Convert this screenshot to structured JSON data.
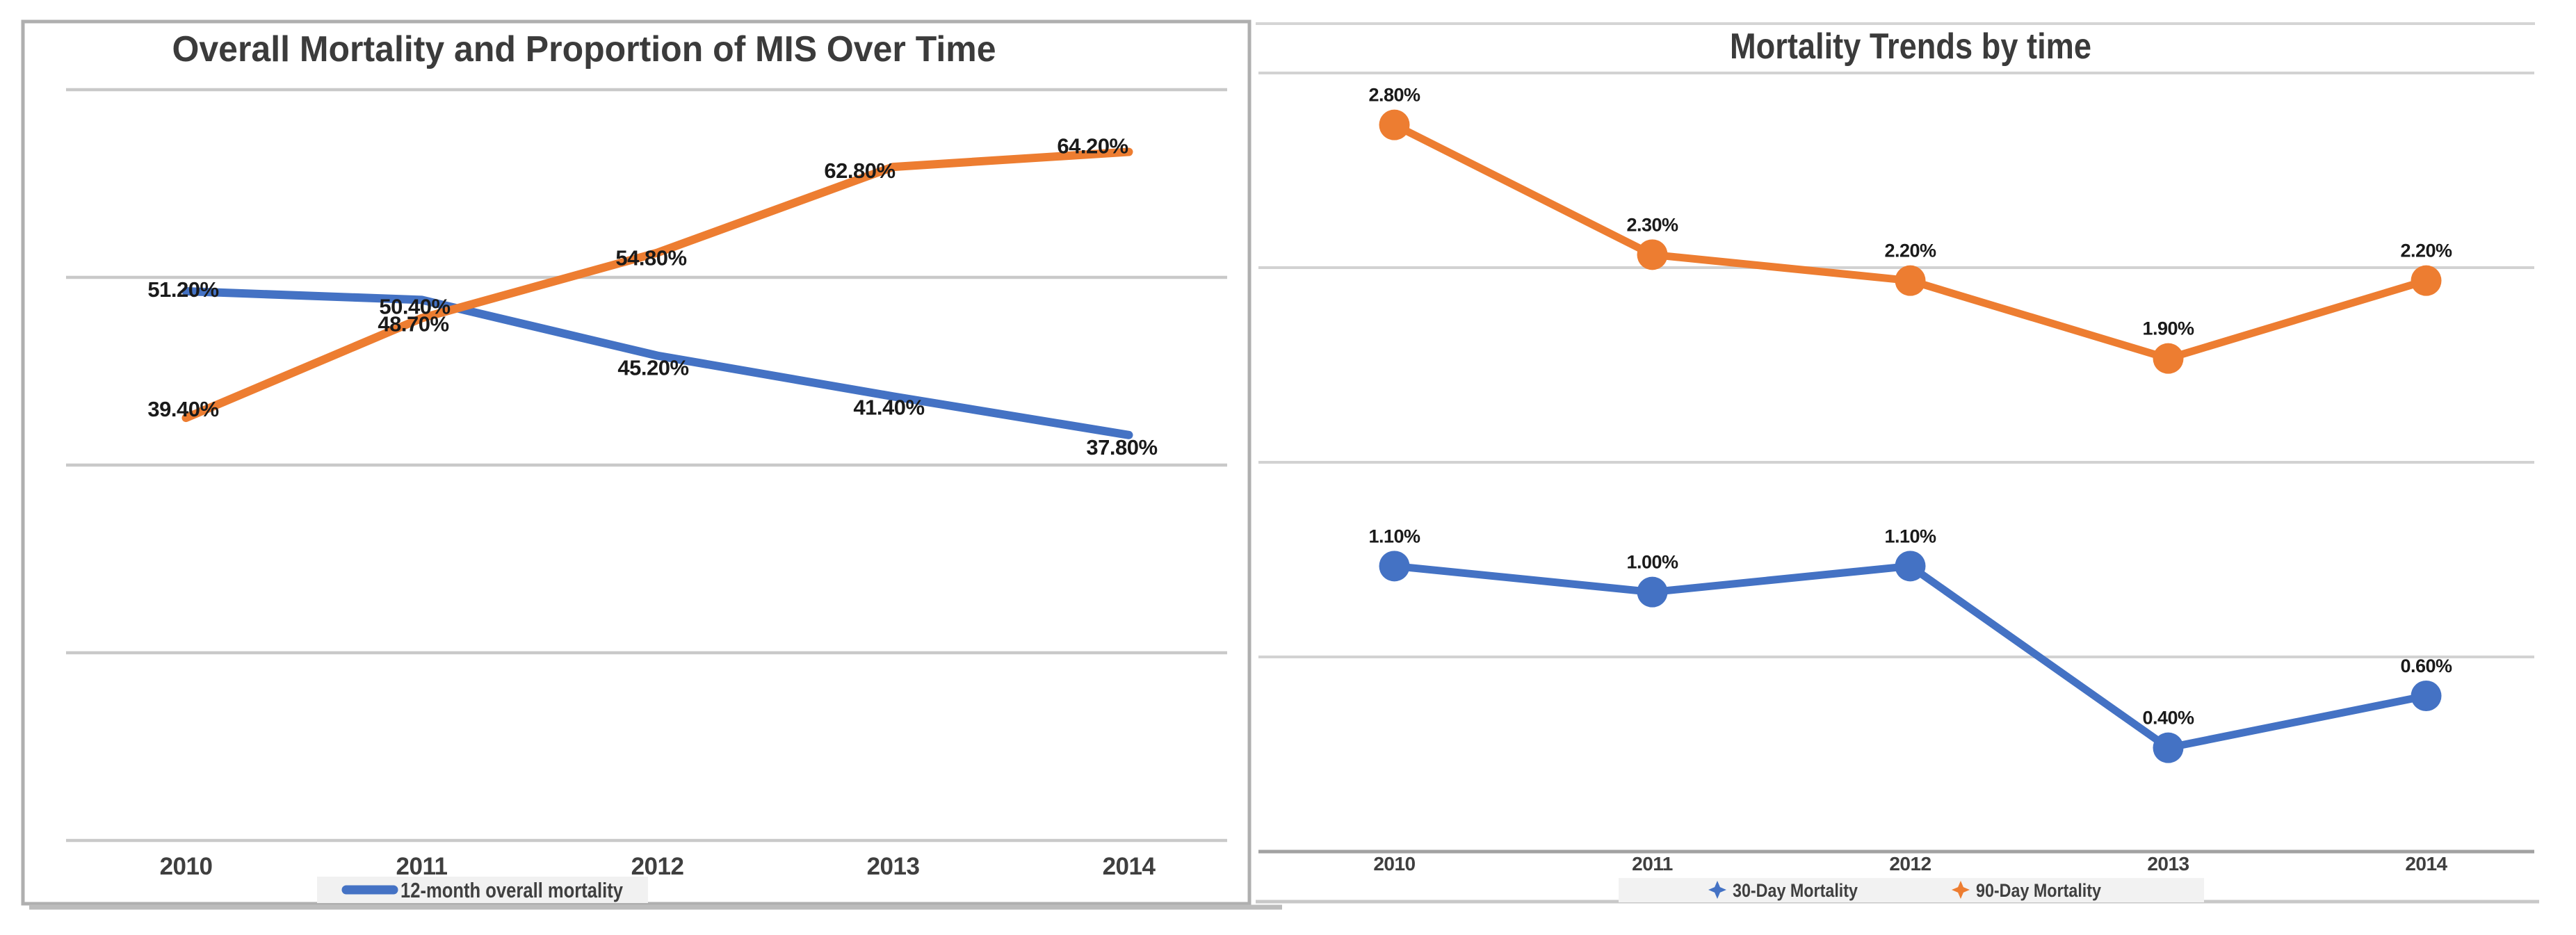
{
  "chart_data": [
    {
      "type": "line",
      "title": "Overall Mortality and Proportion of MIS Over Time",
      "categories": [
        "2010",
        "2011",
        "2012",
        "2013",
        "2014"
      ],
      "series": [
        {
          "name": "12-month overall mortality",
          "color": "#4472C4",
          "values": [
            51.2,
            50.4,
            45.2,
            41.4,
            37.8
          ],
          "data_labels": [
            "51.20%",
            "50.40%",
            "45.20%",
            "41.40%",
            "37.80%"
          ],
          "markers": false,
          "in_legend": true
        },
        {
          "name": "",
          "color": "#ED7D31",
          "values": [
            39.4,
            48.7,
            54.8,
            62.8,
            64.2
          ],
          "data_labels": [
            "39.40%",
            "48.70%",
            "54.80%",
            "62.80%",
            "64.20%"
          ],
          "markers": false,
          "in_legend": false
        }
      ],
      "ylim": [
        0,
        70
      ],
      "gridline_step": 17.5,
      "grid": true,
      "y_axis_labels_visible": false,
      "legend_position": "bottom",
      "legend_entries": [
        "12-month overall mortality"
      ],
      "xlabel": "",
      "ylabel": ""
    },
    {
      "type": "line",
      "title": "Mortality Trends by time",
      "categories": [
        "2010",
        "2011",
        "2012",
        "2013",
        "2014"
      ],
      "series": [
        {
          "name": "30-Day Mortality",
          "color": "#4472C4",
          "values": [
            1.1,
            1.0,
            1.1,
            0.4,
            0.6
          ],
          "data_labels": [
            "1.10%",
            "1.00%",
            "1.10%",
            "0.40%",
            "0.60%"
          ],
          "markers": true,
          "in_legend": true
        },
        {
          "name": "90-Day Mortality",
          "color": "#ED7D31",
          "values": [
            2.8,
            2.3,
            2.2,
            1.9,
            2.2
          ],
          "data_labels": [
            "2.80%",
            "2.30%",
            "2.20%",
            "1.90%",
            "2.20%"
          ],
          "markers": true,
          "in_legend": true
        }
      ],
      "ylim": [
        0,
        3
      ],
      "gridline_step": 0.75,
      "grid": true,
      "y_axis_labels_visible": false,
      "legend_position": "bottom",
      "legend_entries": [
        "30-Day Mortality",
        "90-Day Mortality"
      ],
      "xlabel": "",
      "ylabel": ""
    }
  ],
  "colors": {
    "series_blue": "#4472C4",
    "series_orange": "#ED7D31",
    "gridline_left": "#C9C9C9",
    "gridline_right": "#D2D2D2",
    "zero_axis_right": "#A2A2A2",
    "panel_border": "#AFAFAF",
    "legend_background": "#F2F2F2",
    "title_text": "#3B3B3B",
    "data_label_text": "#1A1A1A",
    "axis_label_text": "#3F3F3F",
    "background": "#FFFFFF"
  }
}
